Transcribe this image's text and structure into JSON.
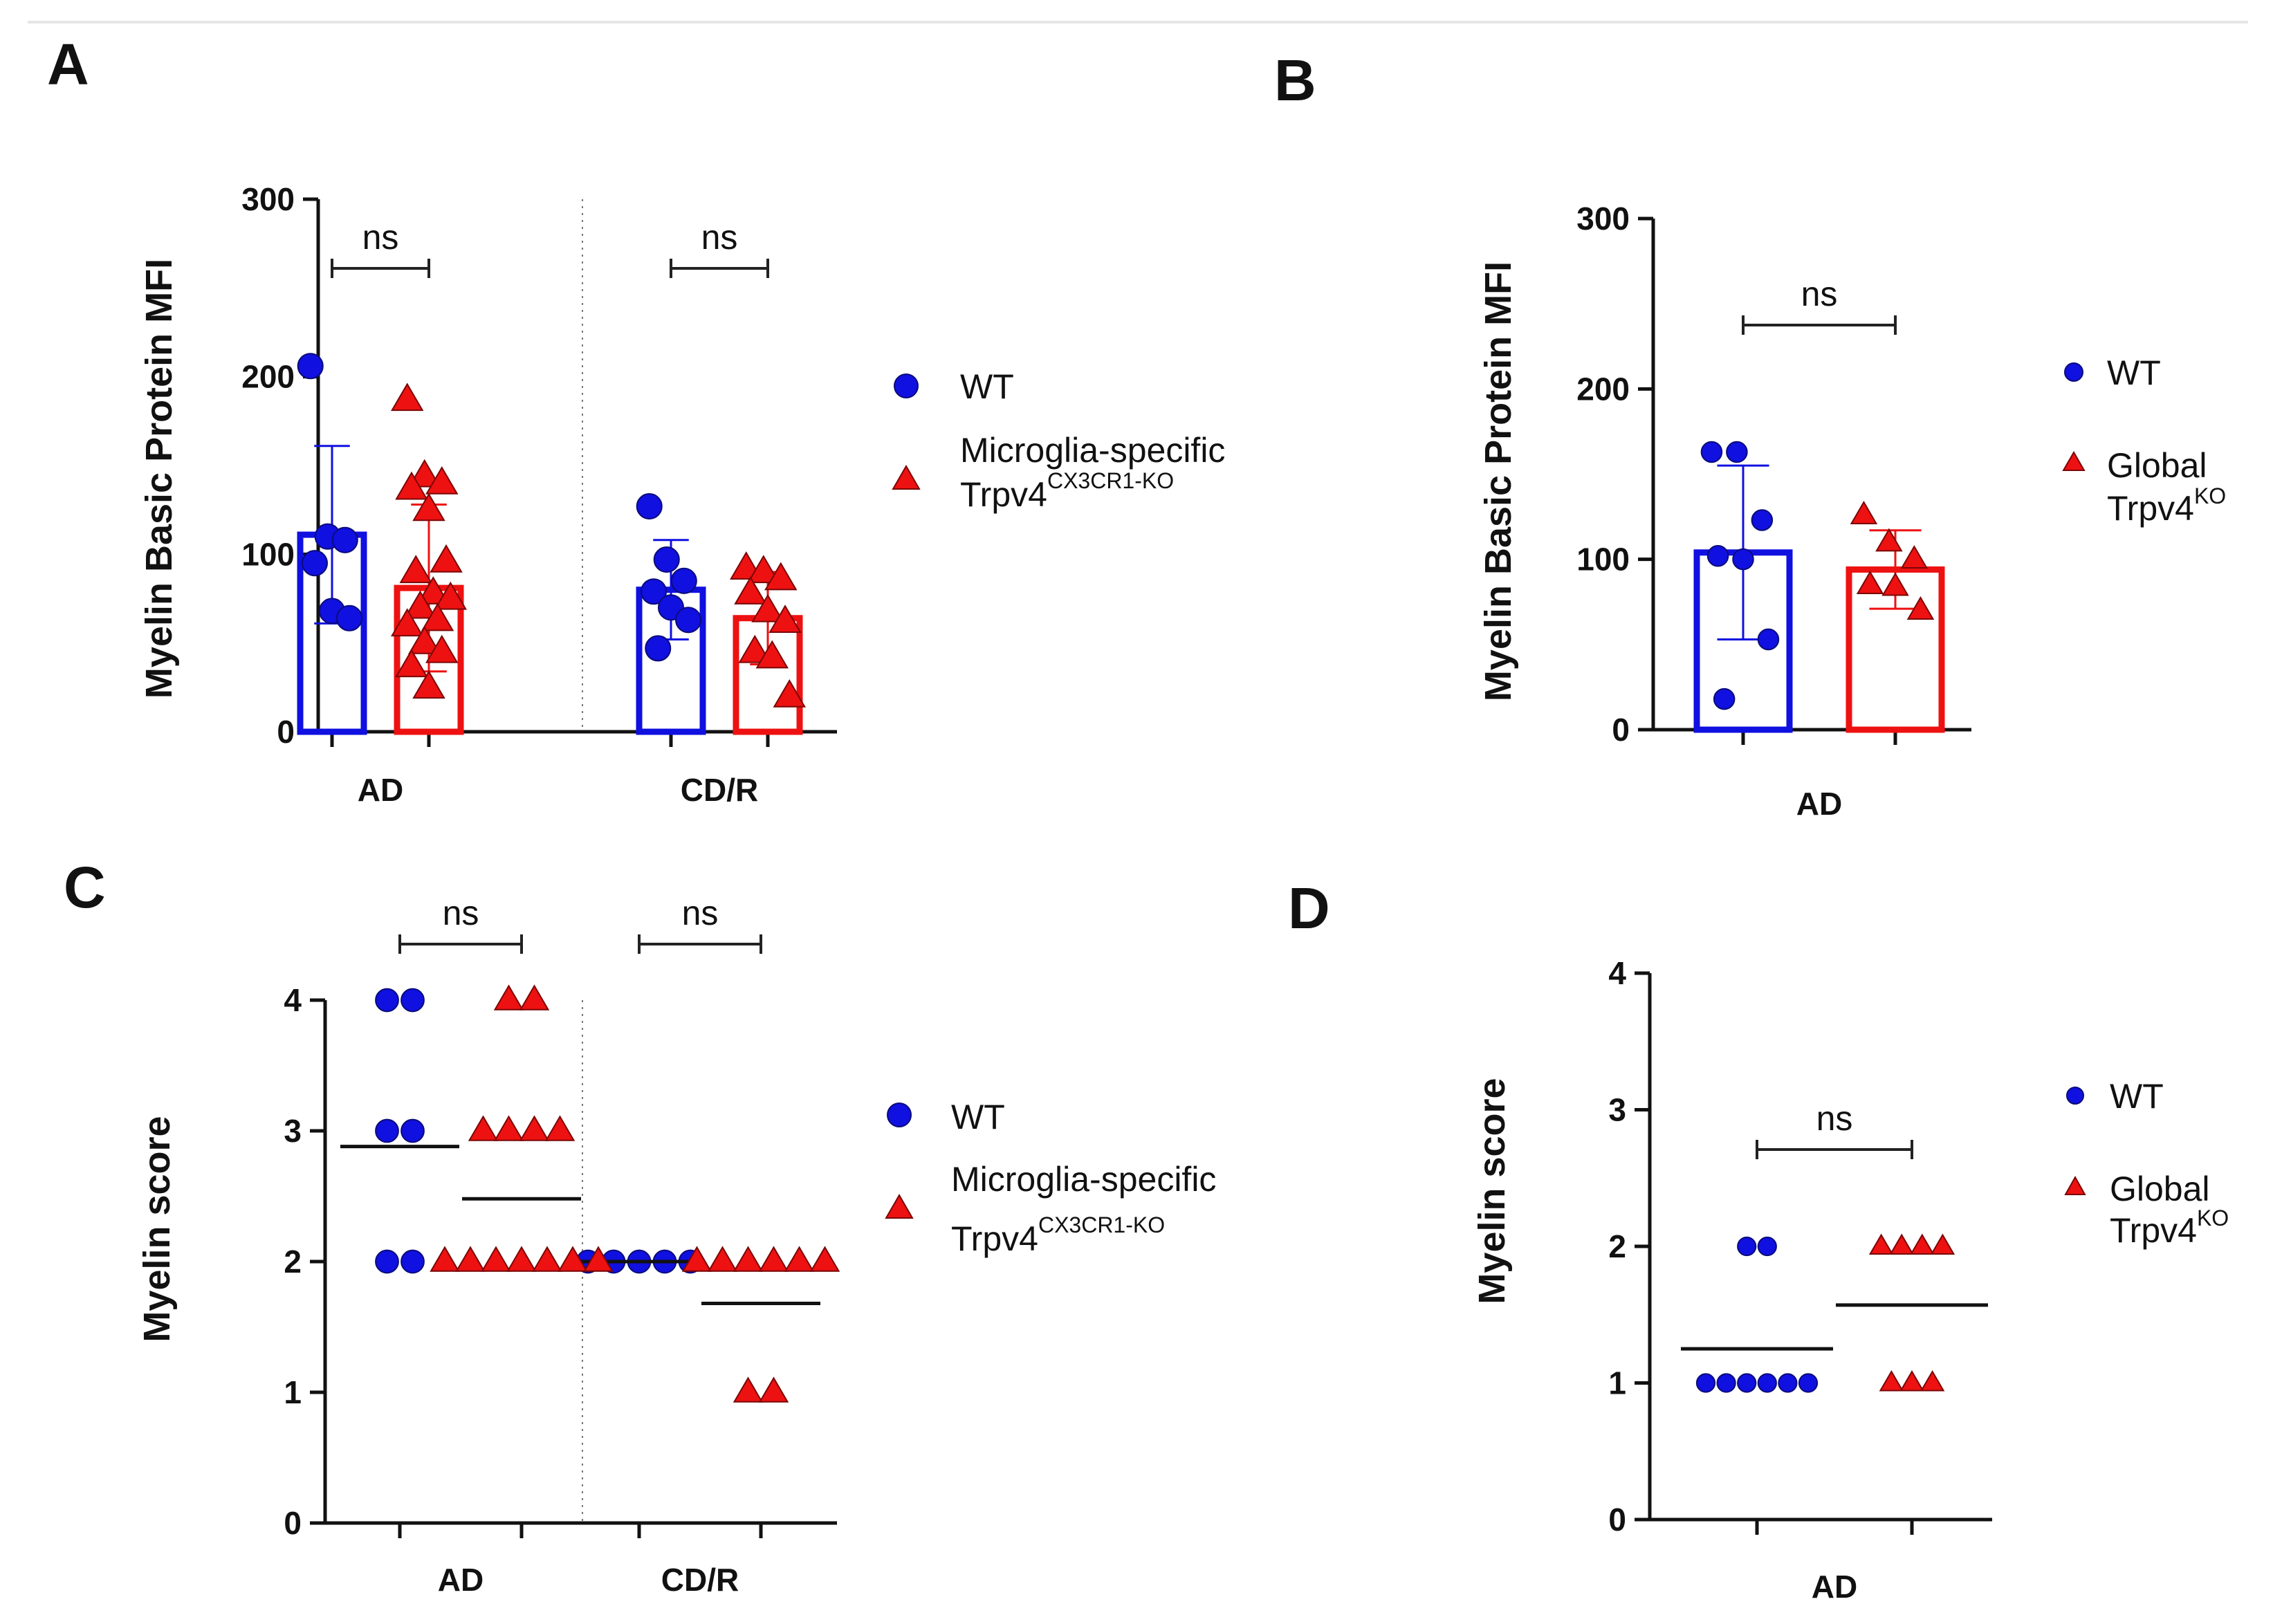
{
  "chart_data": [
    {
      "id": "A",
      "type": "bar",
      "panel_label": "A",
      "ylabel": "Myelin Basic Protein MFI",
      "ylim": [
        0,
        300
      ],
      "yticks": [
        "0",
        "100",
        "200",
        "300"
      ],
      "categories": [
        "AD",
        "CD/R"
      ],
      "series": [
        {
          "name": "WT",
          "color": "#1010e0",
          "marker": "circle",
          "values": [
            111,
            80
          ],
          "sd": [
            50,
            28
          ],
          "points": [
            [
              206,
              110,
              108,
              95,
              68,
              64
            ],
            [
              127,
              97,
              85,
              79,
              70,
              63,
              47
            ]
          ]
        },
        {
          "name": "Microglia-specific Trpv4CX3CR1-KO",
          "color": "#ee1111",
          "marker": "triangle",
          "values": [
            81,
            64
          ],
          "sd": [
            47,
            26
          ],
          "points": [
            [
              187,
              144,
              140,
              137,
              125,
              96,
              90,
              78,
              75,
              70,
              63,
              60,
              50,
              45,
              37,
              25
            ],
            [
              92,
              90,
              86,
              78,
              68,
              62,
              45,
              42,
              20
            ]
          ]
        }
      ],
      "significance": [
        {
          "category": "AD",
          "label": "ns"
        },
        {
          "category": "CD/R",
          "label": "ns"
        }
      ],
      "legend": {
        "position": "right",
        "entries": [
          "WT",
          "Microglia-specific",
          "Trpv4",
          "CX3CR1-KO"
        ]
      }
    },
    {
      "id": "B",
      "type": "bar",
      "panel_label": "B",
      "ylabel": "Myelin Basic Protein MFI",
      "ylim": [
        0,
        300
      ],
      "yticks": [
        "0",
        "100",
        "200",
        "300"
      ],
      "categories": [
        "AD"
      ],
      "series": [
        {
          "name": "WT",
          "color": "#1010e0",
          "marker": "circle",
          "values": [
            104
          ],
          "sd": [
            51
          ],
          "points": [
            [
              163,
              163,
              123,
              102,
              100,
              53,
              18
            ]
          ]
        },
        {
          "name": "Global Trpv4KO",
          "color": "#ee1111",
          "marker": "triangle",
          "values": [
            94
          ],
          "sd": [
            23
          ],
          "points": [
            [
              126,
              110,
              100,
              85,
              84,
              70
            ]
          ]
        }
      ],
      "significance": [
        {
          "category": "AD",
          "label": "ns"
        }
      ],
      "legend": {
        "position": "right",
        "entries": [
          "WT",
          "Global",
          "Trpv4",
          "KO"
        ]
      }
    },
    {
      "id": "C",
      "type": "scatter",
      "panel_label": "C",
      "ylabel": "Myelin score",
      "ylim": [
        0,
        4
      ],
      "yticks": [
        "0",
        "1",
        "2",
        "3",
        "4"
      ],
      "categories": [
        "AD",
        "CD/R"
      ],
      "series": [
        {
          "name": "WT",
          "color": "#1010e0",
          "marker": "circle",
          "means": [
            2.88,
            2.0
          ],
          "points": [
            [
              4,
              4,
              3,
              3,
              2,
              2
            ],
            [
              2,
              2,
              2,
              2,
              2
            ]
          ]
        },
        {
          "name": "Microglia-specific Trpv4CX3CR1-KO",
          "color": "#ee1111",
          "marker": "triangle",
          "means": [
            2.48,
            1.68
          ],
          "points": [
            [
              4,
              4,
              3,
              3,
              3,
              3,
              2,
              2,
              2,
              2,
              2,
              2,
              2
            ],
            [
              2,
              2,
              2,
              2,
              2,
              2,
              1,
              1
            ]
          ]
        }
      ],
      "significance": [
        {
          "category": "AD",
          "label": "ns"
        },
        {
          "category": "CD/R",
          "label": "ns"
        }
      ],
      "legend": {
        "position": "right",
        "entries": [
          "WT",
          "Microglia-specific",
          "Trpv4",
          "CX3CR1-KO"
        ]
      }
    },
    {
      "id": "D",
      "type": "scatter",
      "panel_label": "D",
      "ylabel": "Myelin score",
      "ylim": [
        0,
        4
      ],
      "yticks": [
        "0",
        "1",
        "2",
        "3",
        "4"
      ],
      "categories": [
        "AD"
      ],
      "series": [
        {
          "name": "WT",
          "color": "#1010e0",
          "marker": "circle",
          "means": [
            1.25
          ],
          "points": [
            [
              2,
              2,
              1,
              1,
              1,
              1,
              1,
              1
            ]
          ]
        },
        {
          "name": "Global Trpv4KO",
          "color": "#ee1111",
          "marker": "triangle",
          "means": [
            1.57
          ],
          "points": [
            [
              2,
              2,
              2,
              2,
              1,
              1,
              1
            ]
          ]
        }
      ],
      "significance": [
        {
          "category": "AD",
          "label": "ns"
        }
      ],
      "legend": {
        "position": "right",
        "entries": [
          "WT",
          "Global",
          "Trpv4",
          "KO"
        ]
      }
    }
  ]
}
